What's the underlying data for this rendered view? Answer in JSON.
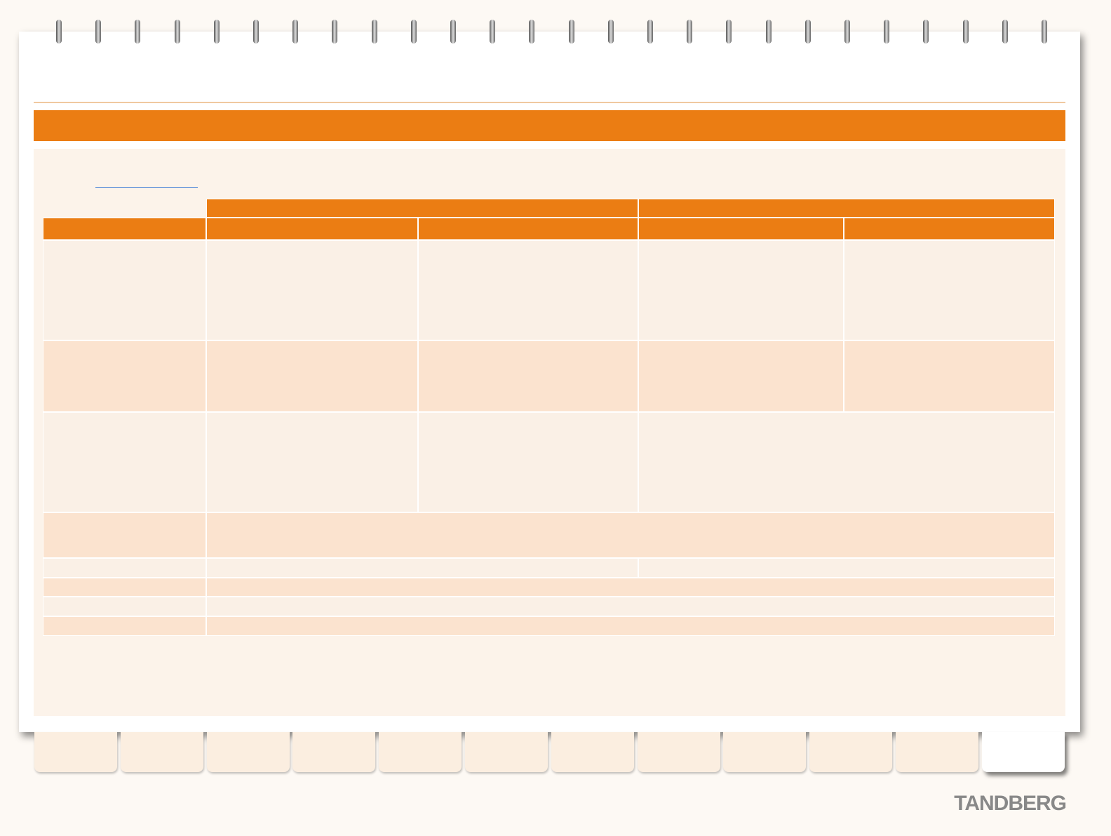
{
  "logo": "TANDBERG"
}
